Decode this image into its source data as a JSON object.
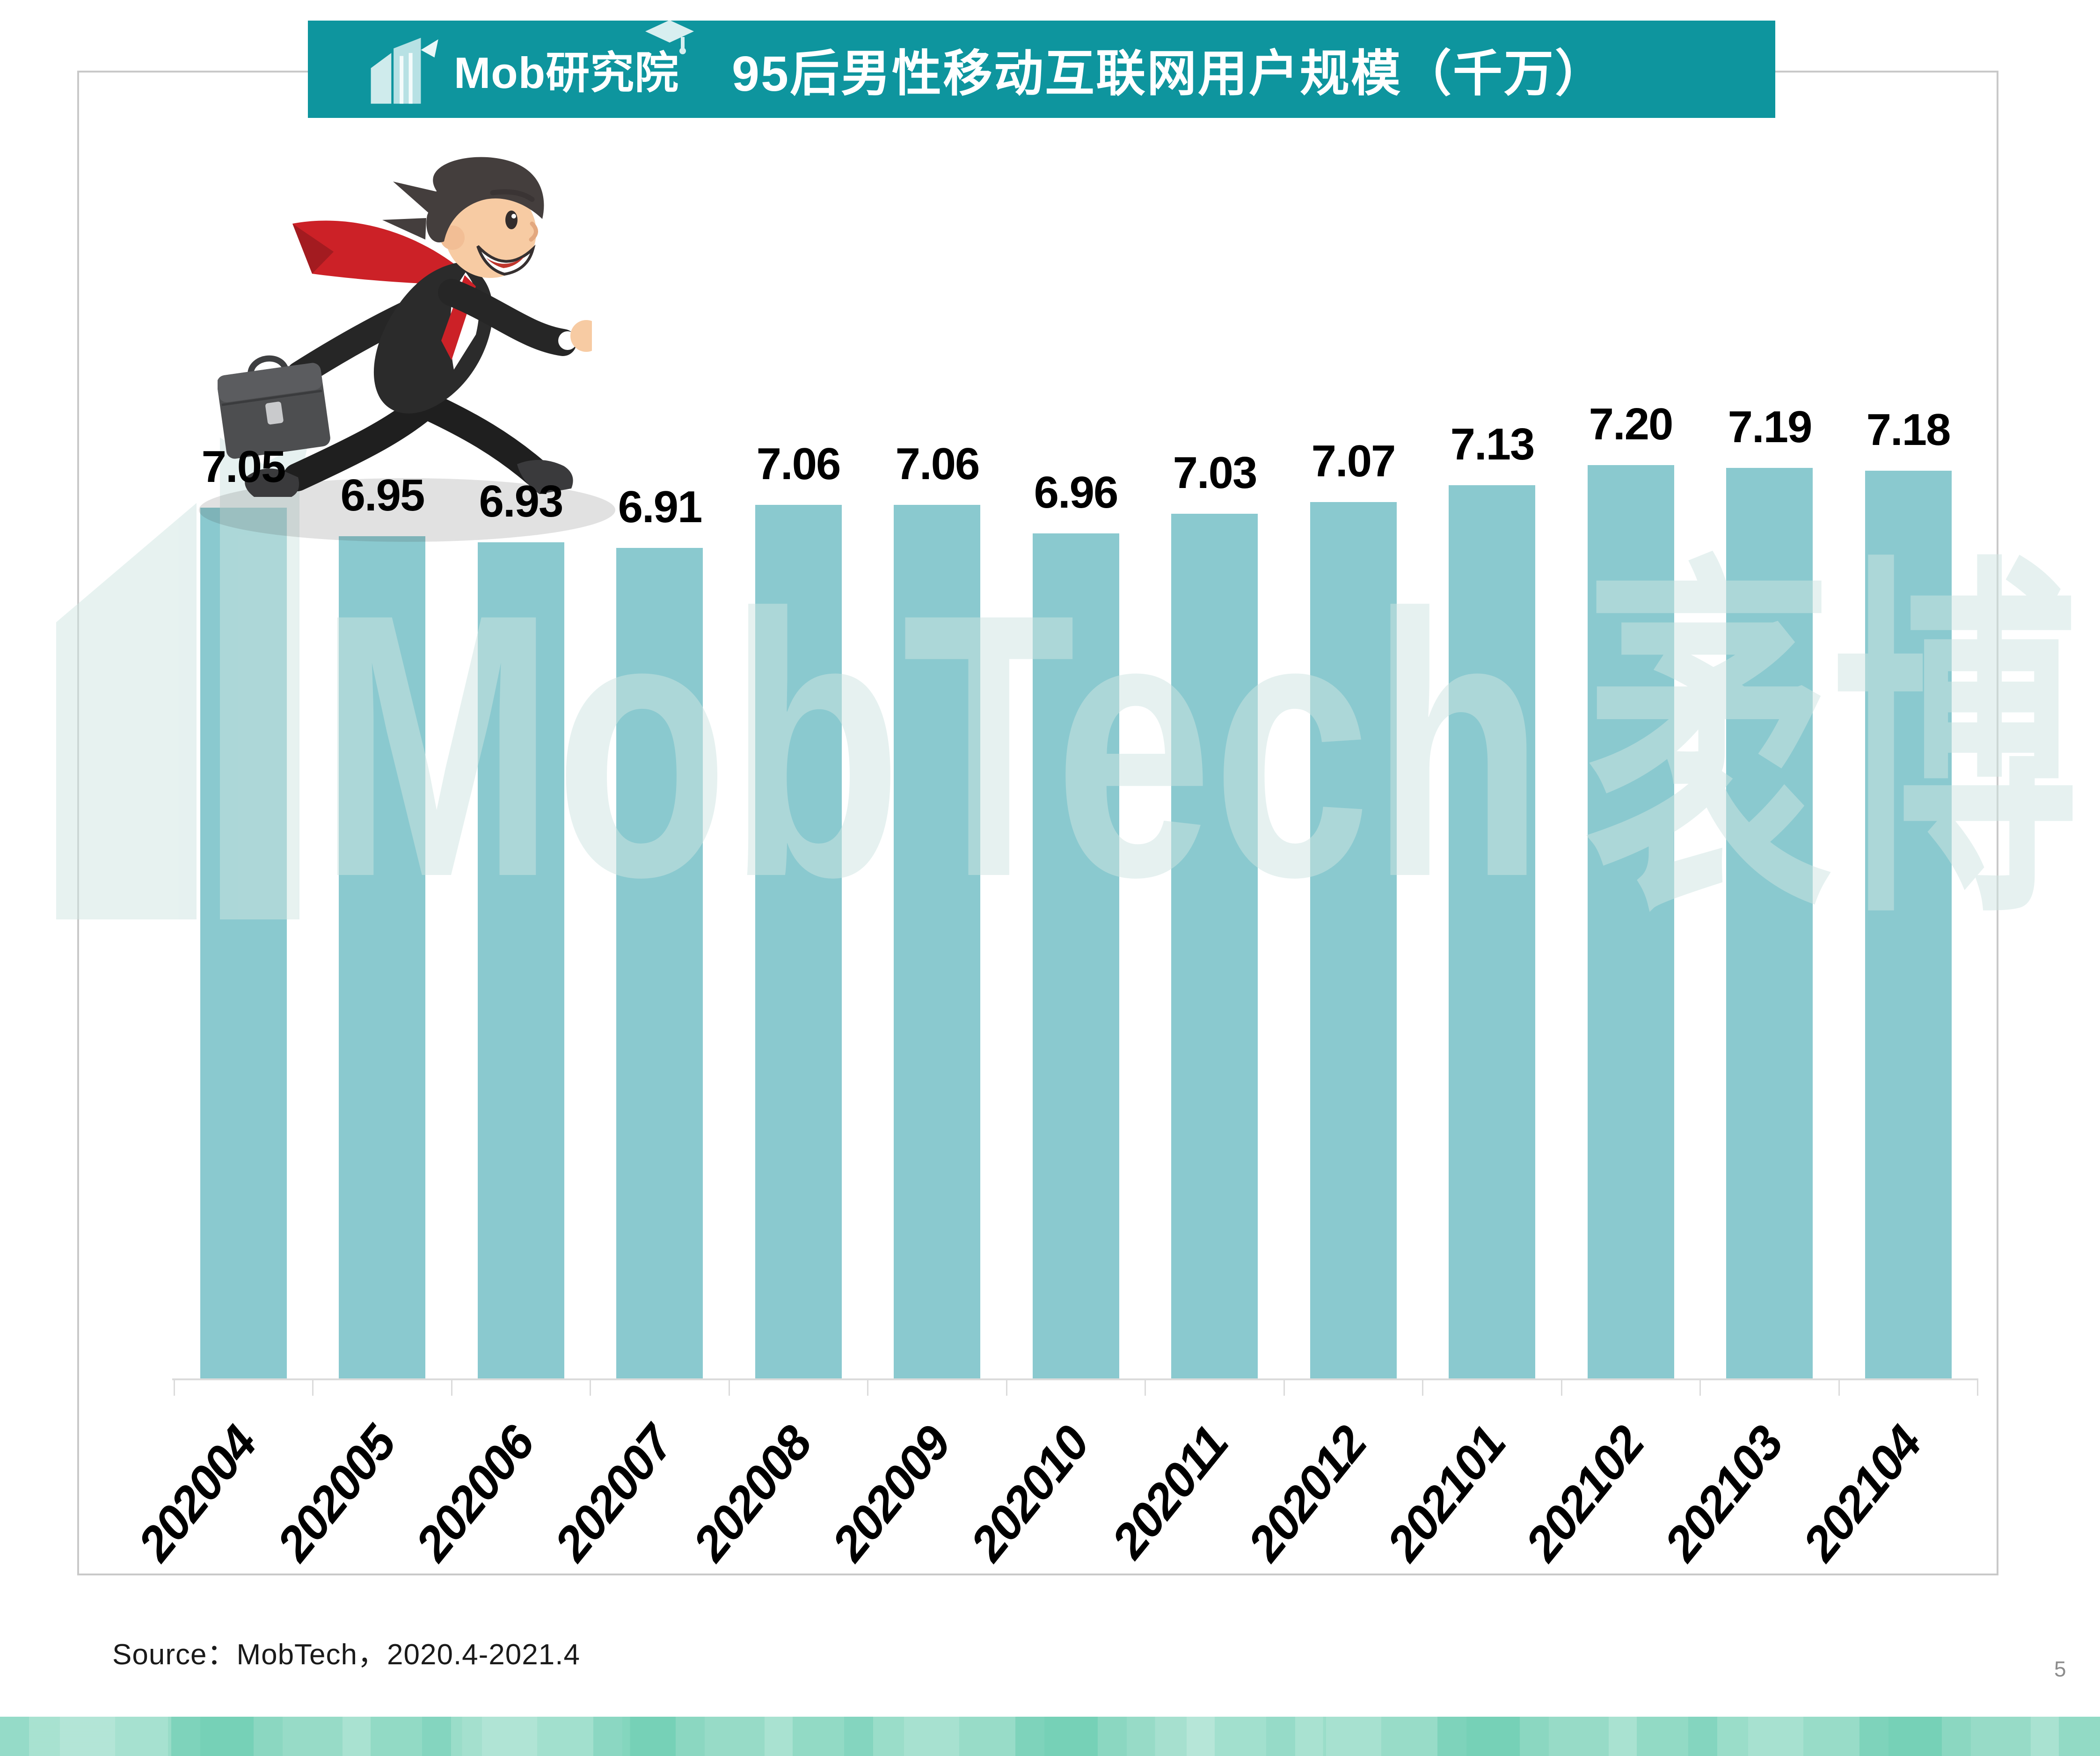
{
  "header": {
    "logo": {
      "text": "Mob研究院",
      "icon": "building-blocks-icon",
      "cap_icon": "graduation-cap-icon"
    },
    "title": "95后男性移动互联网用户规模（千万）"
  },
  "watermark": {
    "latin": "MobTech",
    "cn": "袤博"
  },
  "source_line": "Source：MobTech，2020.4-2021.4",
  "page_number": "5",
  "colors": {
    "banner_teal": "#0E959E",
    "bar_fill": "#8AC9CF",
    "axis_gray": "#DBDBDB",
    "panel_border": "#C9C9C9",
    "watermark_tint": "#CFE5E2",
    "page_number_gray": "#8C8C8C",
    "suit_black": "#2B2B2B",
    "tie_red": "#CC2127",
    "skin_tone": "#F7CBA3",
    "briefcase_gray": "#4D4E50",
    "shadow_gray": "rgba(70,70,70,0.16)"
  },
  "chart_data": {
    "type": "bar",
    "title": "95后男性移动互联网用户规模（千万）",
    "categories": [
      "202004",
      "202005",
      "202006",
      "202007",
      "202008",
      "202009",
      "202010",
      "202011",
      "202012",
      "202101",
      "202102",
      "202103",
      "202104"
    ],
    "values": [
      7.05,
      6.95,
      6.93,
      6.91,
      7.06,
      7.06,
      6.96,
      7.03,
      7.07,
      7.13,
      7.2,
      7.19,
      7.18
    ],
    "value_labels": [
      "7.05",
      "6.95",
      "6.93",
      "6.91",
      "7.06",
      "7.06",
      "6.96",
      "7.03",
      "7.07",
      "7.13",
      "7.20",
      "7.19",
      "7.18"
    ],
    "xlabel": "",
    "ylabel": "",
    "ylim_implied": [
      4.0,
      7.4
    ],
    "gridlines": false,
    "legend": false,
    "y_axis_visible": false,
    "bar_color": "#8AC9CF",
    "data_label_color": "#000000",
    "source": "Source：MobTech，2020.4-2021.4"
  }
}
